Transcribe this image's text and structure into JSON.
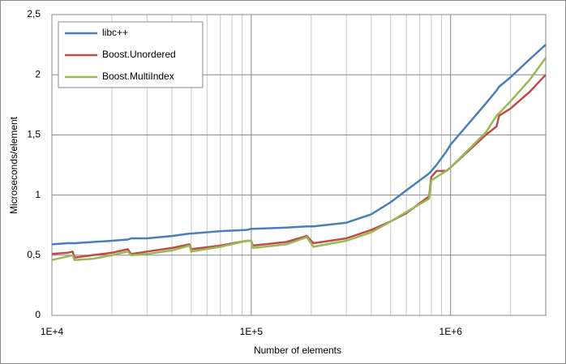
{
  "chart_data": {
    "type": "line",
    "xlabel": "Number of elements",
    "ylabel": "Microseconds/element",
    "xscale": "log",
    "grid": true,
    "legend": "top-left",
    "xlim": [
      10000,
      3000000
    ],
    "xticks": [
      {
        "value": 10000,
        "label": "1E+4"
      },
      {
        "value": 100000,
        "label": "1E+5"
      },
      {
        "value": 1000000,
        "label": "1E+6"
      }
    ],
    "xminorticks": [
      20000,
      30000,
      40000,
      50000,
      60000,
      70000,
      80000,
      90000,
      200000,
      300000,
      400000,
      500000,
      600000,
      700000,
      800000,
      900000,
      2000000
    ],
    "ylim": [
      0,
      2.5
    ],
    "yticks": [
      0,
      {
        "value": 0.5,
        "label": "0,5"
      },
      1,
      {
        "value": 1.5,
        "label": "1,5"
      },
      2,
      {
        "value": 2.5,
        "label": "2,5"
      }
    ],
    "x": [
      10000,
      12000,
      12700,
      13000,
      16000,
      20000,
      24000,
      25000,
      30000,
      40000,
      49000,
      50000,
      70000,
      95000,
      100000,
      102000,
      150000,
      190000,
      205000,
      300000,
      400000,
      500000,
      600000,
      780000,
      800000,
      850000,
      950000,
      1000000,
      1500000,
      1700000,
      1750000,
      2000000,
      2500000,
      3000000
    ],
    "series": [
      {
        "name": "libc++",
        "color": "#4a7ebb",
        "values": [
          0.59,
          0.6,
          0.6,
          0.6,
          0.61,
          0.62,
          0.63,
          0.64,
          0.64,
          0.66,
          0.68,
          0.68,
          0.7,
          0.71,
          0.72,
          0.72,
          0.73,
          0.74,
          0.74,
          0.77,
          0.84,
          0.94,
          1.04,
          1.18,
          1.2,
          1.25,
          1.36,
          1.42,
          1.76,
          1.87,
          1.9,
          1.98,
          2.13,
          2.25
        ]
      },
      {
        "name": "Boost.Unordered",
        "color": "#be4b48",
        "values": [
          0.51,
          0.52,
          0.53,
          0.48,
          0.5,
          0.52,
          0.55,
          0.51,
          0.53,
          0.56,
          0.59,
          0.55,
          0.58,
          0.62,
          0.62,
          0.58,
          0.61,
          0.66,
          0.6,
          0.64,
          0.71,
          0.78,
          0.85,
          0.99,
          1.15,
          1.2,
          1.2,
          1.23,
          1.5,
          1.57,
          1.66,
          1.72,
          1.86,
          2.0
        ]
      },
      {
        "name": "Boost.MultiIndex",
        "color": "#98b954",
        "values": [
          0.46,
          0.49,
          0.5,
          0.46,
          0.47,
          0.5,
          0.53,
          0.5,
          0.51,
          0.54,
          0.58,
          0.53,
          0.57,
          0.62,
          0.62,
          0.56,
          0.59,
          0.65,
          0.57,
          0.62,
          0.69,
          0.78,
          0.86,
          0.97,
          1.12,
          1.15,
          1.2,
          1.23,
          1.52,
          1.66,
          1.68,
          1.78,
          1.96,
          2.14
        ]
      }
    ]
  }
}
